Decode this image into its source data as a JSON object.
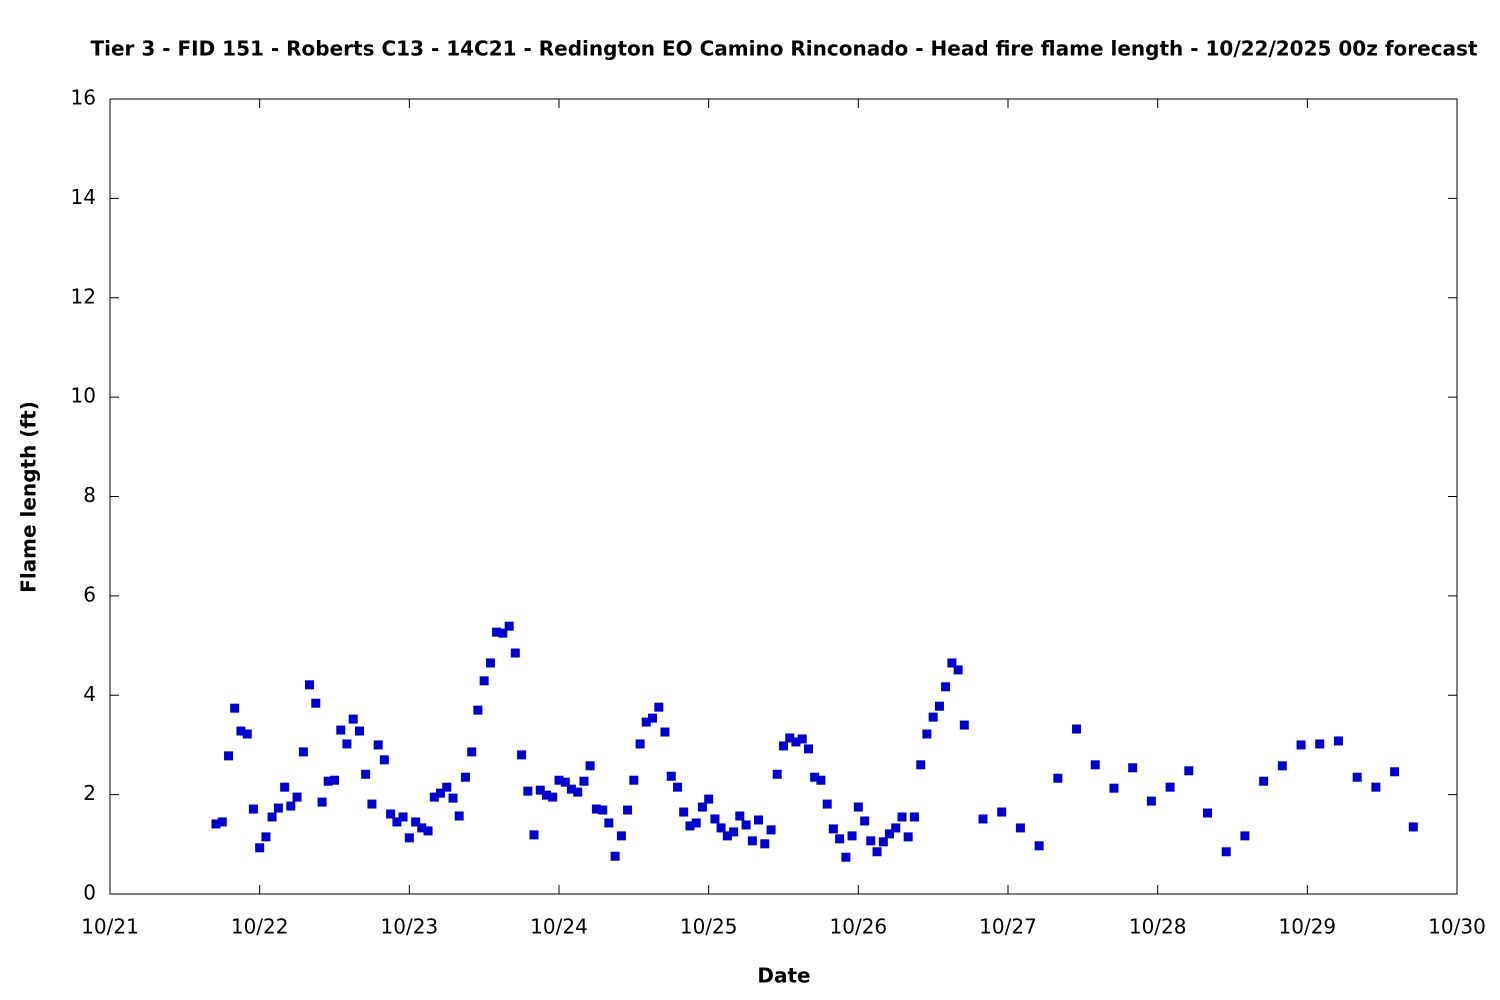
{
  "chart_data": {
    "type": "scatter",
    "title": "Tier 3 - FID 151 - Roberts C13 - 14C21 - Redington EO Camino Rinconado - Head fire flame length - 10/22/2025 00z forecast",
    "x_label": "Date",
    "y_label": "Flame length (ft)",
    "xlim": [
      21,
      30
    ],
    "xticks": [
      {
        "value": 21,
        "label": "10/21"
      },
      {
        "value": 22,
        "label": "10/22"
      },
      {
        "value": 23,
        "label": "10/23"
      },
      {
        "value": 24,
        "label": "10/24"
      },
      {
        "value": 25,
        "label": "10/25"
      },
      {
        "value": 26,
        "label": "10/26"
      },
      {
        "value": 27,
        "label": "10/27"
      },
      {
        "value": 28,
        "label": "10/28"
      },
      {
        "value": 29,
        "label": "10/29"
      },
      {
        "value": 30,
        "label": "10/30"
      }
    ],
    "ylim": [
      0,
      16
    ],
    "yticks": [
      0,
      2,
      4,
      6,
      8,
      10,
      12,
      14,
      16
    ],
    "grid": false,
    "color": "#0000cc",
    "x": [
      21.708,
      21.75,
      21.792,
      21.833,
      21.875,
      21.917,
      21.958,
      22,
      22.042,
      22.083,
      22.125,
      22.167,
      22.208,
      22.25,
      22.292,
      22.333,
      22.375,
      22.417,
      22.458,
      22.5,
      22.542,
      22.583,
      22.625,
      22.667,
      22.708,
      22.75,
      22.792,
      22.833,
      22.875,
      22.917,
      22.958,
      23,
      23.042,
      23.083,
      23.125,
      23.167,
      23.208,
      23.25,
      23.292,
      23.333,
      23.375,
      23.417,
      23.458,
      23.5,
      23.542,
      23.583,
      23.625,
      23.667,
      23.708,
      23.75,
      23.792,
      23.833,
      23.875,
      23.917,
      23.958,
      24,
      24.042,
      24.083,
      24.125,
      24.167,
      24.208,
      24.25,
      24.292,
      24.333,
      24.375,
      24.417,
      24.458,
      24.5,
      24.542,
      24.583,
      24.625,
      24.667,
      24.708,
      24.75,
      24.792,
      24.833,
      24.875,
      24.917,
      24.958,
      25,
      25.042,
      25.083,
      25.125,
      25.167,
      25.208,
      25.25,
      25.292,
      25.333,
      25.375,
      25.417,
      25.458,
      25.5,
      25.542,
      25.583,
      25.625,
      25.667,
      25.708,
      25.75,
      25.792,
      25.833,
      25.875,
      25.917,
      25.958,
      26,
      26.042,
      26.083,
      26.125,
      26.167,
      26.208,
      26.25,
      26.292,
      26.333,
      26.375,
      26.417,
      26.458,
      26.5,
      26.542,
      26.583,
      26.625,
      26.667,
      26.708,
      26.833,
      26.958,
      27.083,
      27.208,
      27.333,
      27.458,
      27.583,
      27.708,
      27.833,
      27.958,
      28.083,
      28.208,
      28.333,
      28.458,
      28.583,
      28.708,
      28.833,
      28.958,
      29.083,
      29.208,
      29.333,
      29.458,
      29.583,
      29.708
    ],
    "values": [
      1.41,
      1.45,
      2.78,
      3.74,
      3.28,
      3.22,
      1.71,
      0.93,
      1.15,
      1.55,
      1.73,
      2.15,
      1.77,
      1.95,
      2.86,
      4.21,
      3.84,
      1.85,
      2.27,
      2.29,
      3.3,
      3.02,
      3.52,
      3.28,
      2.41,
      1.81,
      3.0,
      2.7,
      1.61,
      1.45,
      1.55,
      1.13,
      1.45,
      1.33,
      1.27,
      1.95,
      2.03,
      2.15,
      1.93,
      1.57,
      2.35,
      2.86,
      3.7,
      4.29,
      4.65,
      5.27,
      5.25,
      5.39,
      4.85,
      2.8,
      2.07,
      1.19,
      2.09,
      1.99,
      1.95,
      2.29,
      2.25,
      2.11,
      2.05,
      2.27,
      2.58,
      1.71,
      1.69,
      1.43,
      0.76,
      1.17,
      1.69,
      2.29,
      3.02,
      3.46,
      3.54,
      3.76,
      3.26,
      2.37,
      2.15,
      1.65,
      1.37,
      1.43,
      1.75,
      1.91,
      1.51,
      1.33,
      1.17,
      1.25,
      1.57,
      1.39,
      1.07,
      1.49,
      1.01,
      1.29,
      2.41,
      2.98,
      3.14,
      3.06,
      3.12,
      2.92,
      2.35,
      2.29,
      1.81,
      1.31,
      1.11,
      0.74,
      1.17,
      1.75,
      1.47,
      1.07,
      0.85,
      1.05,
      1.21,
      1.33,
      1.55,
      1.15,
      1.55,
      2.6,
      3.22,
      3.56,
      3.78,
      4.17,
      4.65,
      4.51,
      3.4,
      1.51,
      1.65,
      1.33,
      0.97,
      2.33,
      3.32,
      2.6,
      2.13,
      2.54,
      1.87,
      2.15,
      2.48,
      1.63,
      0.85,
      1.17,
      2.27,
      2.58,
      3.0,
      3.02,
      3.08,
      2.35,
      2.15,
      2.46,
      1.35
    ]
  }
}
